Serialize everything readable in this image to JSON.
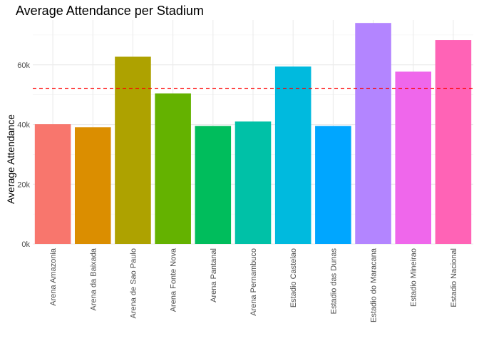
{
  "chart_data": {
    "type": "bar",
    "title": "Average Attendance per Stadium",
    "xlabel": "",
    "ylabel": "Average Attendance",
    "ylim": [
      0,
      75000
    ],
    "y_ticks": [
      0,
      20000,
      40000,
      60000
    ],
    "y_tick_labels": [
      "0k",
      "20k",
      "40k",
      "60k"
    ],
    "categories": [
      "Arena Amazonia",
      "Arena da Baixada",
      "Arena de Sao Paulo",
      "Arena Fonte Nova",
      "Arena Pantanal",
      "Arena Pernambuco",
      "Estadio Castelao",
      "Estadio das Dunas",
      "Estadio do Maracana",
      "Estadio Mineirao",
      "Estadio Nacional"
    ],
    "values": [
      40100,
      39100,
      62700,
      50400,
      39500,
      41000,
      59400,
      39500,
      74000,
      57700,
      68300
    ],
    "colors": [
      "#F8766D",
      "#DB8E00",
      "#AEA200",
      "#64B200",
      "#00BD5C",
      "#00C1A7",
      "#00BADE",
      "#00A6FF",
      "#B385FF",
      "#EF67EB",
      "#FF63B6"
    ],
    "reference_line": {
      "value": 52000,
      "style": "dashed",
      "color": "#FF0000"
    },
    "grid": true,
    "legend": "none"
  }
}
